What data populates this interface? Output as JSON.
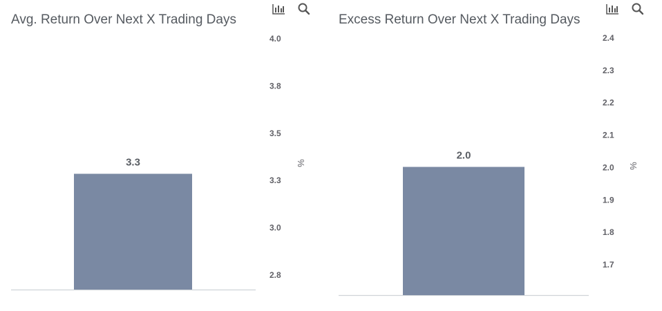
{
  "chart_data": [
    {
      "type": "bar",
      "title": "Avg. Return Over Next X Trading Days",
      "categories": [
        ""
      ],
      "values": [
        3.3
      ],
      "data_labels": [
        "3.3"
      ],
      "ylabel": "%",
      "yticks": [
        "4.0",
        "3.8",
        "3.5",
        "3.3",
        "3.0",
        "2.8"
      ],
      "ylim": [
        2.7,
        4.0
      ],
      "bar_color": "#7a89a3",
      "axis_position": "right",
      "grid": false,
      "tools": [
        "bar-chart-icon",
        "search-icon"
      ]
    },
    {
      "type": "bar",
      "title": "Excess Return Over Next X Trading Days",
      "categories": [
        ""
      ],
      "values": [
        2.0
      ],
      "data_labels": [
        "2.0"
      ],
      "ylabel": "%",
      "yticks": [
        "2.4",
        "2.3",
        "2.2",
        "2.1",
        "2.0",
        "1.9",
        "1.8",
        "1.7"
      ],
      "ylim": [
        1.6,
        2.4
      ],
      "bar_color": "#7a89a3",
      "axis_position": "right",
      "grid": false,
      "tools": [
        "bar-chart-icon",
        "search-icon"
      ]
    }
  ]
}
